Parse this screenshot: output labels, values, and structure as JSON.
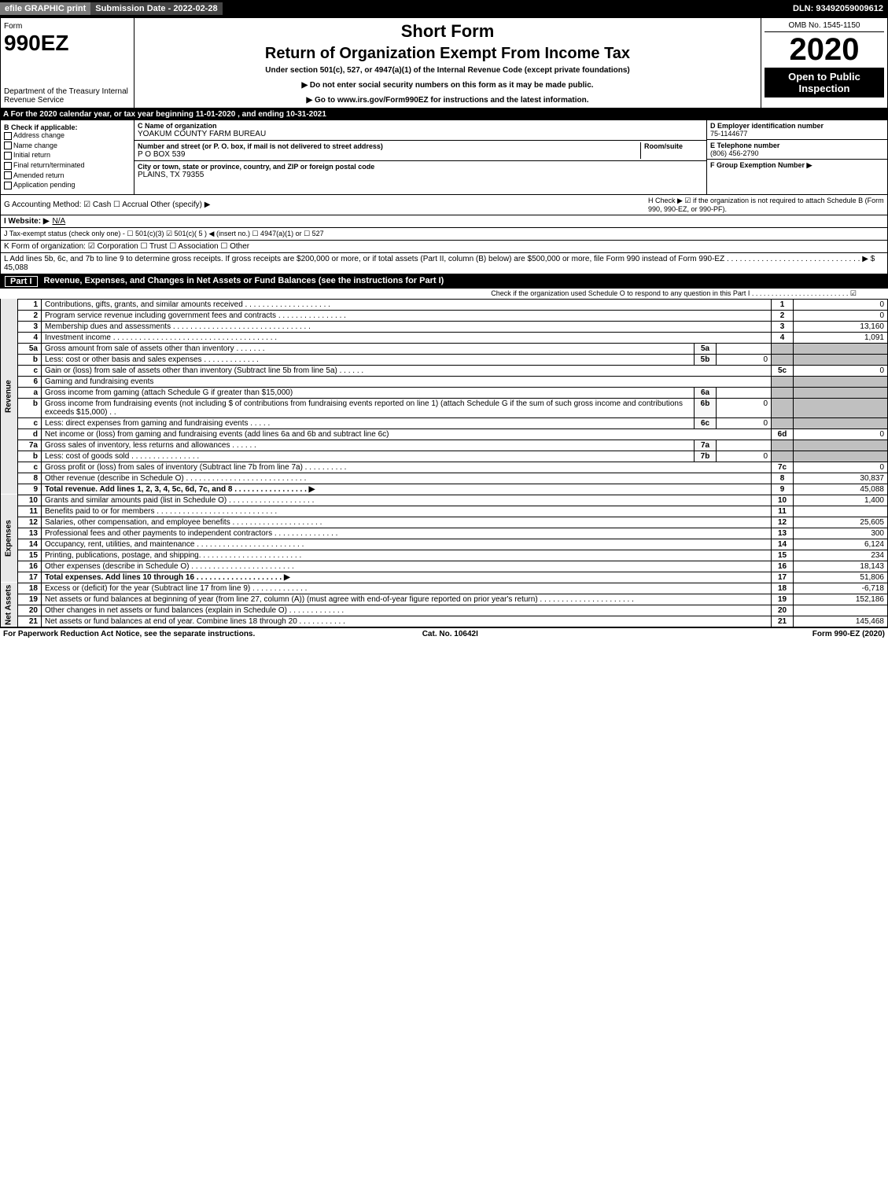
{
  "header": {
    "efile": "efile GRAPHIC print",
    "submission_date_label": "Submission Date - 2022-02-28",
    "dln": "DLN: 93492059009612"
  },
  "title": {
    "form_word": "Form",
    "form_num": "990EZ",
    "dept": "Department of the Treasury Internal Revenue Service",
    "short": "Short Form",
    "main": "Return of Organization Exempt From Income Tax",
    "sub": "Under section 501(c), 527, or 4947(a)(1) of the Internal Revenue Code (except private foundations)",
    "note1": "▶ Do not enter social security numbers on this form as it may be made public.",
    "note2": "▶ Go to www.irs.gov/Form990EZ for instructions and the latest information.",
    "omb": "OMB No. 1545-1150",
    "year": "2020",
    "open": "Open to Public Inspection"
  },
  "row_a": "A For the 2020 calendar year, or tax year beginning 11-01-2020 , and ending 10-31-2021",
  "box_b": {
    "title": "B  Check if applicable:",
    "opts": [
      "Address change",
      "Name change",
      "Initial return",
      "Final return/terminated",
      "Amended return",
      "Application pending"
    ]
  },
  "box_c": {
    "label": "C Name of organization",
    "name": "YOAKUM COUNTY FARM BUREAU",
    "addr_label": "Number and street (or P. O. box, if mail is not delivered to street address)",
    "room_label": "Room/suite",
    "addr": "P O BOX 539",
    "city_label": "City or town, state or province, country, and ZIP or foreign postal code",
    "city": "PLAINS, TX  79355"
  },
  "box_right": {
    "d_label": "D Employer identification number",
    "d_val": "75-1144677",
    "e_label": "E Telephone number",
    "e_val": "(806) 456-2790",
    "f_label": "F Group Exemption Number  ▶"
  },
  "g": {
    "label": "G Accounting Method:  ☑ Cash  ☐ Accrual  Other (specify) ▶"
  },
  "h": {
    "label": "H  Check ▶ ☑ if the organization is not required to attach Schedule B (Form 990, 990-EZ, or 990-PF)."
  },
  "i": {
    "label": "I Website: ▶",
    "val": "N/A"
  },
  "j": {
    "label": "J Tax-exempt status (check only one) - ☐ 501(c)(3) ☑ 501(c)( 5 ) ◀ (insert no.) ☐ 4947(a)(1) or ☐ 527"
  },
  "k": {
    "label": "K Form of organization:  ☑ Corporation  ☐ Trust  ☐ Association  ☐ Other"
  },
  "l": {
    "label": "L Add lines 5b, 6c, and 7b to line 9 to determine gross receipts. If gross receipts are $200,000 or more, or if total assets (Part II, column (B) below) are $500,000 or more, file Form 990 instead of Form 990-EZ  . . . . . . . . . . . . . . . . . . . . . . . . . . . . . . .  ▶ $ 45,088"
  },
  "part1": {
    "title": "Part I",
    "heading": "Revenue, Expenses, and Changes in Net Assets or Fund Balances (see the instructions for Part I)",
    "check": "Check if the organization used Schedule O to respond to any question in this Part I  . . . . . . . . . . . . . . . . . . . . . . . . .  ☑"
  },
  "sidelabels": {
    "rev": "Revenue",
    "exp": "Expenses",
    "net": "Net Assets"
  },
  "lines": [
    {
      "side": "rev",
      "n": "1",
      "d": "Contributions, gifts, grants, and similar amounts received  . . . . . . . . . . . . . . . . . . . .",
      "ln": "1",
      "amt": "0"
    },
    {
      "side": "rev",
      "n": "2",
      "d": "Program service revenue including government fees and contracts  . . . . . . . . . . . . . . . .",
      "ln": "2",
      "amt": "0"
    },
    {
      "side": "rev",
      "n": "3",
      "d": "Membership dues and assessments  . . . . . . . . . . . . . . . . . . . . . . . . . . . . . . . .",
      "ln": "3",
      "amt": "13,160"
    },
    {
      "side": "rev",
      "n": "4",
      "d": "Investment income  . . . . . . . . . . . . . . . . . . . . . . . . . . . . . . . . . . . . . .",
      "ln": "4",
      "amt": "1,091"
    },
    {
      "side": "rev",
      "n": "5a",
      "d": "Gross amount from sale of assets other than inventory  . . . . . . .",
      "sub": "5a",
      "subval": "",
      "grey": true
    },
    {
      "side": "rev",
      "n": "b",
      "d": "Less: cost or other basis and sales expenses  . . . . . . . . . . . . .",
      "sub": "5b",
      "subval": "0",
      "grey": true
    },
    {
      "side": "rev",
      "n": "c",
      "d": "Gain or (loss) from sale of assets other than inventory (Subtract line 5b from line 5a)  . . . . . .",
      "ln": "5c",
      "amt": "0"
    },
    {
      "side": "rev",
      "n": "6",
      "d": "Gaming and fundraising events",
      "grey": true
    },
    {
      "side": "rev",
      "n": "a",
      "d": "Gross income from gaming (attach Schedule G if greater than $15,000)",
      "sub": "6a",
      "subval": "",
      "grey": true
    },
    {
      "side": "rev",
      "n": "b",
      "d": "Gross income from fundraising events (not including $                      of contributions from fundraising events reported on line 1) (attach Schedule G if the sum of such gross income and contributions exceeds $15,000)   . .",
      "sub": "6b",
      "subval": "0",
      "grey": true
    },
    {
      "side": "rev",
      "n": "c",
      "d": "Less: direct expenses from gaming and fundraising events  . . . . .",
      "sub": "6c",
      "subval": "0",
      "grey": true
    },
    {
      "side": "rev",
      "n": "d",
      "d": "Net income or (loss) from gaming and fundraising events (add lines 6a and 6b and subtract line 6c)",
      "ln": "6d",
      "amt": "0"
    },
    {
      "side": "rev",
      "n": "7a",
      "d": "Gross sales of inventory, less returns and allowances  . . . . . .",
      "sub": "7a",
      "subval": "",
      "grey": true
    },
    {
      "side": "rev",
      "n": "b",
      "d": "Less: cost of goods sold        . . . . . . . . . . . . . . . .",
      "sub": "7b",
      "subval": "0",
      "grey": true
    },
    {
      "side": "rev",
      "n": "c",
      "d": "Gross profit or (loss) from sales of inventory (Subtract line 7b from line 7a)  . . . . . . . . . .",
      "ln": "7c",
      "amt": "0"
    },
    {
      "side": "rev",
      "n": "8",
      "d": "Other revenue (describe in Schedule O)  . . . . . . . . . . . . . . . . . . . . . . . . . . . .",
      "ln": "8",
      "amt": "30,837"
    },
    {
      "side": "rev",
      "n": "9",
      "d": "Total revenue. Add lines 1, 2, 3, 4, 5c, 6d, 7c, and 8  . . . . . . . . . . . . . . . . .   ▶",
      "ln": "9",
      "amt": "45,088",
      "bold": true
    },
    {
      "side": "exp",
      "n": "10",
      "d": "Grants and similar amounts paid (list in Schedule O)  . . . . . . . . . . . . . . . . . . . .",
      "ln": "10",
      "amt": "1,400"
    },
    {
      "side": "exp",
      "n": "11",
      "d": "Benefits paid to or for members     . . . . . . . . . . . . . . . . . . . . . . . . . . . .",
      "ln": "11",
      "amt": ""
    },
    {
      "side": "exp",
      "n": "12",
      "d": "Salaries, other compensation, and employee benefits . . . . . . . . . . . . . . . . . . . . .",
      "ln": "12",
      "amt": "25,605"
    },
    {
      "side": "exp",
      "n": "13",
      "d": "Professional fees and other payments to independent contractors  . . . . . . . . . . . . . . .",
      "ln": "13",
      "amt": "300"
    },
    {
      "side": "exp",
      "n": "14",
      "d": "Occupancy, rent, utilities, and maintenance . . . . . . . . . . . . . . . . . . . . . . . . .",
      "ln": "14",
      "amt": "6,124"
    },
    {
      "side": "exp",
      "n": "15",
      "d": "Printing, publications, postage, and shipping.  . . . . . . . . . . . . . . . . . . . . . . .",
      "ln": "15",
      "amt": "234"
    },
    {
      "side": "exp",
      "n": "16",
      "d": "Other expenses (describe in Schedule O)     . . . . . . . . . . . . . . . . . . . . . . . .",
      "ln": "16",
      "amt": "18,143"
    },
    {
      "side": "exp",
      "n": "17",
      "d": "Total expenses. Add lines 10 through 16     . . . . . . . . . . . . . . . . . . . .   ▶",
      "ln": "17",
      "amt": "51,806",
      "bold": true
    },
    {
      "side": "net",
      "n": "18",
      "d": "Excess or (deficit) for the year (Subtract line 17 from line 9)        . . . . . . . . . . . . .",
      "ln": "18",
      "amt": "-6,718"
    },
    {
      "side": "net",
      "n": "19",
      "d": "Net assets or fund balances at beginning of year (from line 27, column (A)) (must agree with end-of-year figure reported on prior year's return) . . . . . . . . . . . . . . . . . . . . . .",
      "ln": "19",
      "amt": "152,186"
    },
    {
      "side": "net",
      "n": "20",
      "d": "Other changes in net assets or fund balances (explain in Schedule O) . . . . . . . . . . . . .",
      "ln": "20",
      "amt": ""
    },
    {
      "side": "net",
      "n": "21",
      "d": "Net assets or fund balances at end of year. Combine lines 18 through 20 . . . . . . . . . . .",
      "ln": "21",
      "amt": "145,468"
    }
  ],
  "footer": {
    "left": "For Paperwork Reduction Act Notice, see the separate instructions.",
    "mid": "Cat. No. 10642I",
    "right": "Form 990-EZ (2020)"
  }
}
